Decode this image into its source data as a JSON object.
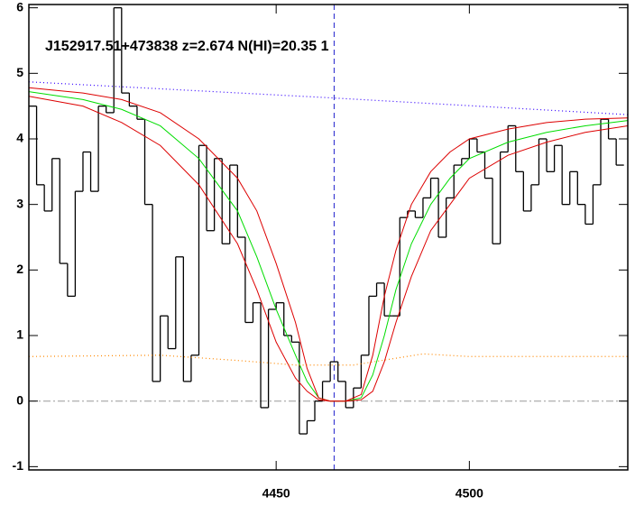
{
  "chart_data": {
    "type": "line",
    "title": "J152917.51+473838 z=2.674 N(HI)=20.35 1",
    "xlim": [
      4386,
      4541
    ],
    "ylim": [
      -1.05,
      6.05
    ],
    "xticks": [
      4450,
      4500
    ],
    "yticks": [
      -1,
      0,
      1,
      2,
      3,
      4,
      5,
      6
    ],
    "vline": 4465,
    "hline": 0,
    "series": [
      {
        "style": "step",
        "color": "#000000",
        "x": [
          4387,
          4389,
          4391,
          4393,
          4395,
          4397,
          4399,
          4401,
          4403,
          4405,
          4407,
          4409,
          4411,
          4413,
          4415,
          4417,
          4419,
          4421,
          4423,
          4425,
          4427,
          4429,
          4431,
          4433,
          4435,
          4437,
          4439,
          4441,
          4443,
          4445,
          4447,
          4449,
          4451,
          4453,
          4455,
          4457,
          4459,
          4461,
          4463,
          4465,
          4467,
          4469,
          4471,
          4473,
          4475,
          4477,
          4479,
          4481,
          4483,
          4485,
          4487,
          4489,
          4491,
          4493,
          4495,
          4497,
          4499,
          4501,
          4503,
          4505,
          4507,
          4509,
          4511,
          4513,
          4515,
          4517,
          4519,
          4521,
          4523,
          4525,
          4527,
          4529,
          4531,
          4533,
          4535,
          4537,
          4539
        ],
        "values": [
          4.5,
          3.3,
          2.9,
          3.7,
          2.1,
          1.6,
          3.2,
          3.8,
          3.2,
          4.5,
          4.4,
          6.0,
          4.7,
          4.5,
          4.3,
          3.0,
          0.3,
          1.3,
          0.8,
          2.2,
          0.3,
          0.7,
          3.9,
          2.6,
          3.7,
          2.4,
          3.6,
          2.5,
          1.2,
          1.5,
          -0.1,
          1.4,
          1.5,
          1.0,
          0.9,
          -0.5,
          -0.3,
          0.0,
          0.3,
          0.6,
          0.3,
          -0.1,
          0.2,
          0.7,
          1.6,
          1.8,
          1.3,
          1.3,
          2.8,
          2.9,
          2.8,
          3.1,
          3.4,
          2.5,
          3.1,
          3.6,
          3.7,
          4.0,
          3.8,
          3.4,
          2.4,
          3.8,
          4.2,
          3.5,
          2.9,
          3.3,
          4.0,
          3.5,
          3.9,
          3.0,
          3.5,
          3.0,
          2.7,
          3.3,
          4.3,
          4.0,
          3.6
        ]
      },
      {
        "style": "solid",
        "color": "#00dd00",
        "x": [
          4386,
          4400,
          4410,
          4420,
          4430,
          4440,
          4445,
          4450,
          4455,
          4458,
          4461,
          4464,
          4468,
          4472,
          4475,
          4478,
          4481,
          4485,
          4490,
          4495,
          4500,
          4510,
          4520,
          4530,
          4541
        ],
        "values": [
          4.72,
          4.6,
          4.45,
          4.2,
          3.7,
          2.9,
          2.2,
          1.4,
          0.7,
          0.3,
          0.05,
          0,
          0,
          0.05,
          0.4,
          1.0,
          1.7,
          2.4,
          3.0,
          3.4,
          3.7,
          3.95,
          4.1,
          4.2,
          4.28
        ]
      },
      {
        "style": "solid",
        "color": "#dd0000",
        "x": [
          4386,
          4400,
          4410,
          4420,
          4430,
          4440,
          4445,
          4450,
          4455,
          4458,
          4461,
          4464,
          4468,
          4472,
          4475,
          4478,
          4481,
          4485,
          4490,
          4495,
          4500,
          4510,
          4520,
          4530,
          4541
        ],
        "values": [
          4.78,
          4.7,
          4.6,
          4.4,
          4.0,
          3.4,
          2.9,
          2.1,
          1.2,
          0.5,
          0.05,
          0,
          0,
          0.1,
          0.7,
          1.6,
          2.3,
          3.0,
          3.5,
          3.8,
          4.0,
          4.15,
          4.25,
          4.3,
          4.32
        ]
      },
      {
        "style": "solid",
        "color": "#dd0000",
        "x": [
          4386,
          4400,
          4410,
          4420,
          4430,
          4440,
          4445,
          4450,
          4455,
          4458,
          4461,
          4464,
          4468,
          4472,
          4475,
          4478,
          4481,
          4485,
          4490,
          4495,
          4500,
          4510,
          4520,
          4530,
          4541
        ],
        "values": [
          4.65,
          4.5,
          4.25,
          3.9,
          3.3,
          2.4,
          1.7,
          0.9,
          0.35,
          0.15,
          0.02,
          0,
          0,
          0.02,
          0.15,
          0.6,
          1.2,
          1.9,
          2.6,
          3.0,
          3.4,
          3.75,
          3.95,
          4.1,
          4.2
        ]
      },
      {
        "style": "dotted",
        "color": "#3300ff",
        "x": [
          4386,
          4463,
          4541
        ],
        "values": [
          4.87,
          4.63,
          4.37
        ]
      },
      {
        "style": "dotted",
        "color": "#ff8800",
        "x": [
          4386,
          4420,
          4440,
          4455,
          4470,
          4488,
          4500,
          4541
        ],
        "values": [
          0.68,
          0.7,
          0.62,
          0.55,
          0.55,
          0.72,
          0.68,
          0.68
        ]
      }
    ]
  }
}
